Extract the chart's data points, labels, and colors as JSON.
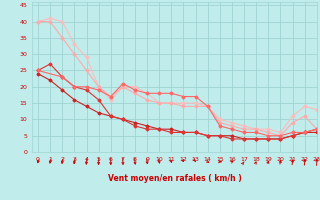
{
  "xlabel": "Vent moyen/en rafales ( km/h )",
  "bg_color": "#c0ecec",
  "grid_color": "#a0d4d4",
  "xlim": [
    -0.5,
    23
  ],
  "ylim": [
    0,
    46
  ],
  "yticks": [
    0,
    5,
    10,
    15,
    20,
    25,
    30,
    35,
    40,
    45
  ],
  "xticks": [
    0,
    1,
    2,
    3,
    4,
    5,
    6,
    7,
    8,
    9,
    10,
    11,
    12,
    13,
    14,
    15,
    16,
    17,
    18,
    19,
    20,
    21,
    22,
    23
  ],
  "lines": [
    {
      "x": [
        0,
        1,
        2,
        3,
        4,
        5,
        6,
        7,
        8,
        9,
        10,
        11,
        12,
        13,
        14,
        15,
        16,
        17,
        18,
        19,
        20,
        21,
        22,
        23
      ],
      "y": [
        40,
        41,
        40,
        33,
        29,
        20,
        16,
        20,
        20,
        18,
        15,
        15,
        15,
        15,
        14,
        10,
        9,
        8,
        7,
        7,
        6,
        11,
        14,
        13
      ],
      "color": "#ffbbbb",
      "lw": 0.8,
      "marker": "D",
      "ms": 1.5
    },
    {
      "x": [
        0,
        1,
        2,
        3,
        4,
        5,
        6,
        7,
        8,
        9,
        10,
        11,
        12,
        13,
        14,
        15,
        16,
        17,
        18,
        19,
        20,
        21,
        22,
        23
      ],
      "y": [
        40,
        40,
        35,
        30,
        25,
        20,
        17,
        20,
        18,
        16,
        15,
        15,
        14,
        14,
        14,
        9,
        8,
        7,
        7,
        6,
        5,
        9,
        11,
        7
      ],
      "color": "#ffaaaa",
      "lw": 0.8,
      "marker": "D",
      "ms": 1.5
    },
    {
      "x": [
        0,
        1,
        2,
        3,
        4,
        5,
        6,
        7,
        8,
        9,
        10,
        11,
        12,
        13,
        14,
        15,
        16,
        17,
        18,
        19,
        20,
        21,
        22,
        23
      ],
      "y": [
        24,
        22,
        19,
        16,
        14,
        12,
        11,
        10,
        9,
        8,
        7,
        7,
        6,
        6,
        5,
        5,
        5,
        4,
        4,
        4,
        4,
        5,
        6,
        6
      ],
      "color": "#cc2222",
      "lw": 0.8,
      "marker": "D",
      "ms": 1.5
    },
    {
      "x": [
        0,
        1,
        2,
        3,
        4,
        5,
        6,
        7,
        8,
        9,
        10,
        11,
        12,
        13,
        14,
        15,
        16,
        17,
        18,
        19,
        20,
        21,
        22,
        23
      ],
      "y": [
        25,
        27,
        23,
        20,
        19,
        16,
        11,
        10,
        8,
        7,
        7,
        6,
        6,
        6,
        5,
        5,
        4,
        4,
        4,
        4,
        4,
        5,
        6,
        7
      ],
      "color": "#dd3333",
      "lw": 0.8,
      "marker": "D",
      "ms": 1.5
    },
    {
      "x": [
        0,
        2,
        3,
        4,
        5,
        6,
        7,
        8,
        9,
        10,
        11,
        12,
        13,
        14,
        15,
        16,
        17,
        18,
        19,
        20,
        21,
        22,
        23
      ],
      "y": [
        25,
        23,
        20,
        20,
        19,
        17,
        21,
        19,
        18,
        18,
        18,
        17,
        17,
        14,
        8,
        7,
        6,
        6,
        5,
        5,
        6,
        6,
        7
      ],
      "color": "#ff6666",
      "lw": 0.8,
      "marker": "D",
      "ms": 1.5
    }
  ],
  "font_color": "#cc0000",
  "tick_fontsize": 4.5,
  "xlabel_fontsize": 5.5,
  "arrow_angles_deg": [
    -135,
    -130,
    -125,
    -120,
    -110,
    -100,
    -90,
    -80,
    -70,
    -60,
    -50,
    -40,
    -30,
    -20,
    -10,
    0,
    10,
    20,
    30,
    40,
    50,
    60,
    70,
    80
  ]
}
